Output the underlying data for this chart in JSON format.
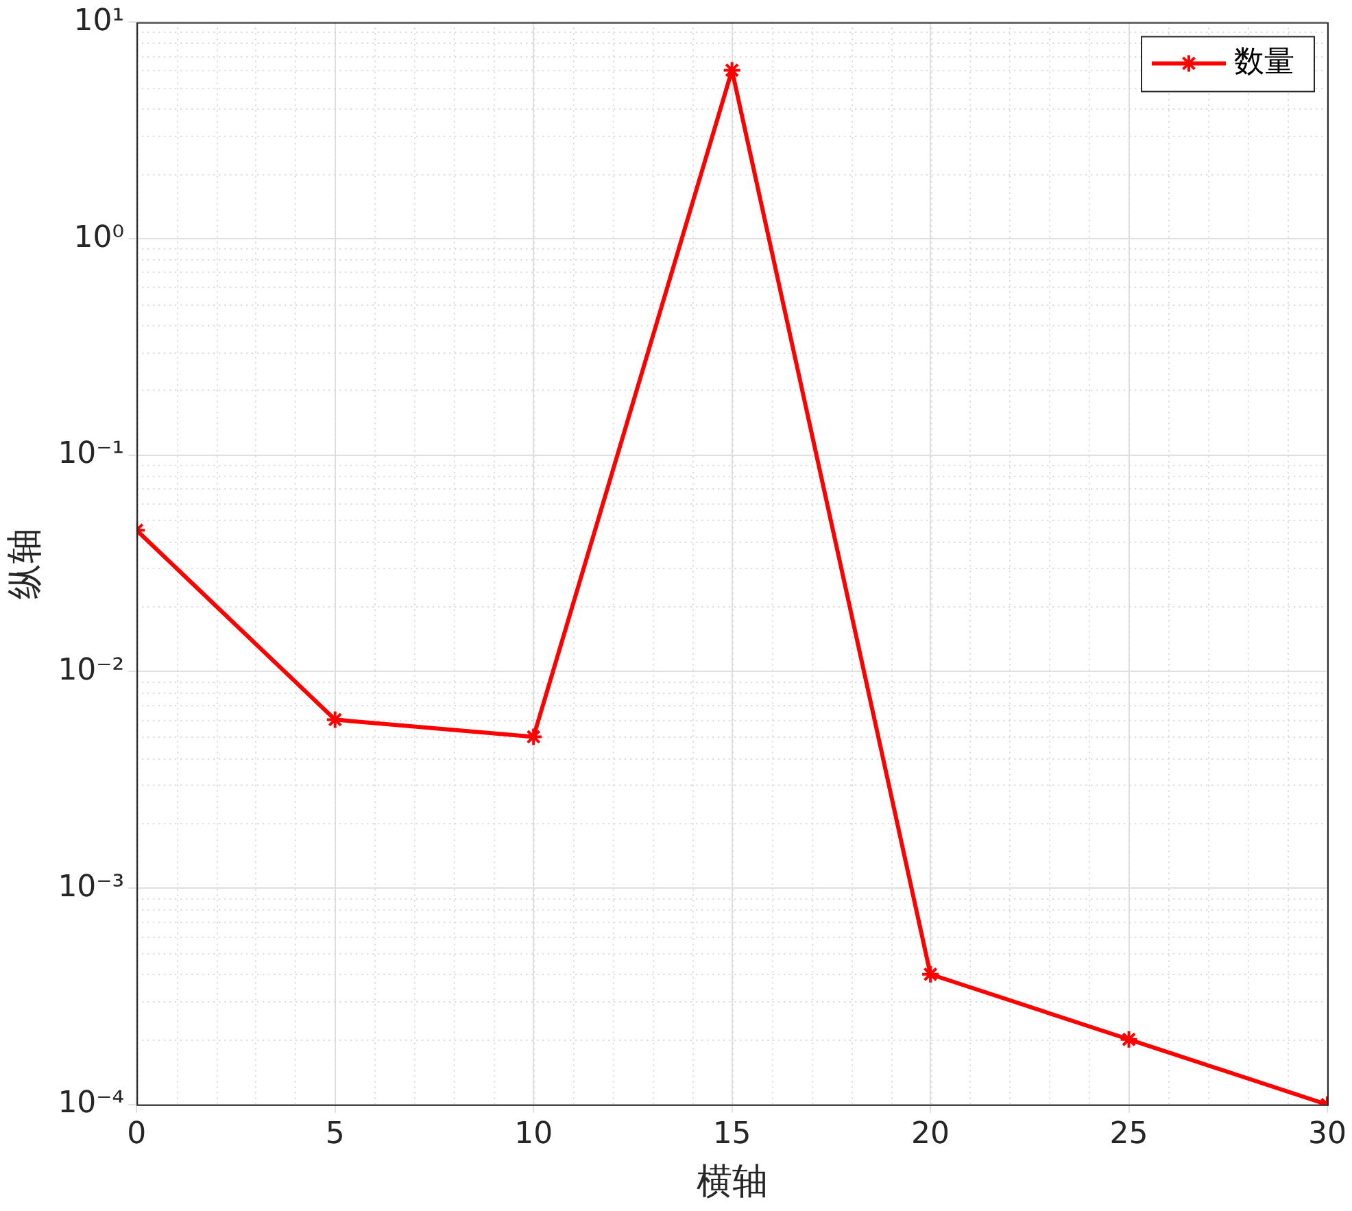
{
  "chart_data": {
    "type": "line",
    "xlabel": "横轴",
    "ylabel": "纵轴",
    "x": [
      0,
      5,
      10,
      15,
      20,
      25,
      30
    ],
    "series": [
      {
        "name": "数量",
        "color": "#ff0000",
        "values": [
          0.045,
          0.006,
          0.005,
          6,
          0.0004,
          0.0002,
          0.0001
        ]
      }
    ],
    "xlim": [
      0,
      30
    ],
    "xticks": [
      0,
      5,
      10,
      15,
      20,
      25,
      30
    ],
    "ylim": [
      0.0001,
      10
    ],
    "yticks": [
      {
        "value": 0.0001,
        "label": "10⁻⁴"
      },
      {
        "value": 0.001,
        "label": "10⁻³"
      },
      {
        "value": 0.01,
        "label": "10⁻²"
      },
      {
        "value": 0.1,
        "label": "10⁻¹"
      },
      {
        "value": 1,
        "label": "10⁰"
      },
      {
        "value": 10,
        "label": "10¹"
      }
    ],
    "log": "y",
    "grid": true,
    "legend": "top right",
    "marker": "cross",
    "line_style": "solid"
  }
}
